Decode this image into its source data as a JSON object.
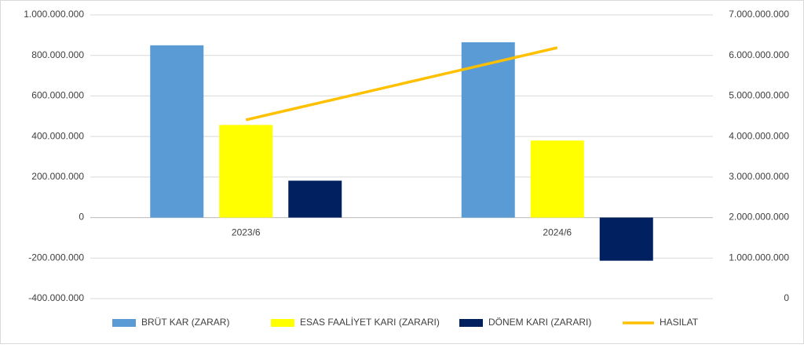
{
  "chart_data": {
    "type": "bar",
    "categories": [
      "2023/6",
      "2024/6"
    ],
    "series": [
      {
        "name": "BRÜT KAR (ZARAR)",
        "color": "#5b9bd5",
        "values": [
          850000000,
          865000000
        ]
      },
      {
        "name": "ESAS FAALİYET KARI (ZARARI)",
        "color": "#ffff00",
        "values": [
          457000000,
          380000000
        ]
      },
      {
        "name": "DÖNEM KARI (ZARARI)",
        "color": "#002060",
        "values": [
          182000000,
          -213000000
        ]
      },
      {
        "name": "HASILAT",
        "color": "#ffc000",
        "type": "line",
        "axis": "y2",
        "values": [
          4410000000,
          6190000000
        ]
      }
    ],
    "ylim": [
      -400000000,
      1000000000
    ],
    "yticks": [
      {
        "value": -400000000,
        "label": "-400.000.000"
      },
      {
        "value": -200000000,
        "label": "-200.000.000"
      },
      0,
      {
        "value": 200000000,
        "label": "200.000.000"
      },
      {
        "value": 400000000,
        "label": "400.000.000"
      },
      {
        "value": 600000000,
        "label": "600.000.000"
      },
      {
        "value": 800000000,
        "label": "800.000.000"
      },
      {
        "value": 1000000000,
        "label": "1.000.000.000"
      }
    ],
    "y2lim": [
      0,
      7000000000
    ],
    "y2ticks": [
      0,
      {
        "value": 1000000000,
        "label": "1.000.000.000"
      },
      {
        "value": 2000000000,
        "label": "2.000.000.000"
      },
      {
        "value": 3000000000,
        "label": "3.000.000.000"
      },
      {
        "value": 4000000000,
        "label": "4.000.000.000"
      },
      {
        "value": 5000000000,
        "label": "5.000.000.000"
      },
      {
        "value": 6000000000,
        "label": "6.000.000.000"
      },
      {
        "value": 7000000000,
        "label": "7.000.000.000"
      }
    ],
    "grid": true,
    "legend": "bottom"
  }
}
